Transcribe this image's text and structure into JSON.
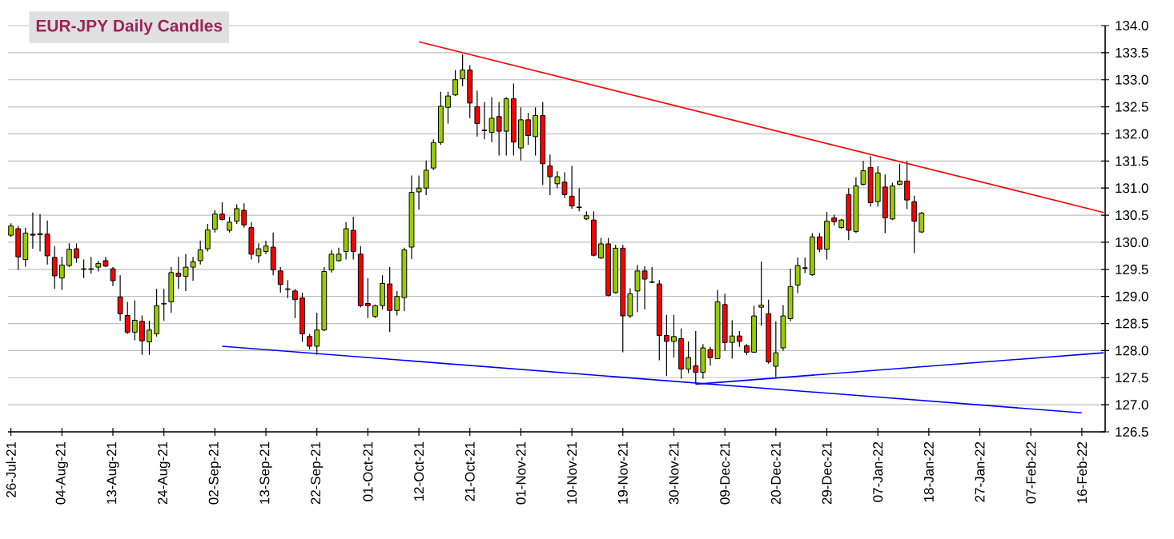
{
  "chart_data": {
    "type": "candlestick",
    "title": "EUR-JPY Daily Candles",
    "categories": [
      "26-Jul-21",
      null,
      null,
      null,
      null,
      null,
      null,
      "04-Aug-21",
      null,
      null,
      null,
      null,
      null,
      null,
      "13-Aug-21",
      null,
      null,
      null,
      null,
      null,
      null,
      "24-Aug-21",
      null,
      null,
      null,
      null,
      null,
      null,
      "02-Sep-21",
      null,
      null,
      null,
      null,
      null,
      null,
      "13-Sep-21",
      null,
      null,
      null,
      null,
      null,
      null,
      "22-Sep-21",
      null,
      null,
      null,
      null,
      null,
      null,
      "01-Oct-21",
      null,
      null,
      null,
      null,
      null,
      null,
      "12-Oct-21",
      null,
      null,
      null,
      null,
      null,
      null,
      "21-Oct-21",
      null,
      null,
      null,
      null,
      null,
      null,
      "01-Nov-21",
      null,
      null,
      null,
      null,
      null,
      null,
      "10-Nov-21",
      null,
      null,
      null,
      null,
      null,
      null,
      "19-Nov-21",
      null,
      null,
      null,
      null,
      null,
      null,
      "30-Nov-21",
      null,
      null,
      null,
      null,
      null,
      null,
      "09-Dec-21",
      null,
      null,
      null,
      null,
      null,
      null,
      "20-Dec-21",
      null,
      null,
      null,
      null,
      null,
      null,
      "29-Dec-21",
      null,
      null,
      null,
      null,
      null,
      null,
      "07-Jan-22",
      null,
      null,
      null,
      null,
      null,
      null,
      "18-Jan-22",
      null,
      null,
      null,
      null,
      null,
      null,
      "27-Jan-22",
      null,
      null,
      null,
      null,
      null,
      null,
      "07-Feb-22",
      null,
      null,
      null,
      null,
      null,
      null,
      "16-Feb-22",
      null,
      null,
      null
    ],
    "ohlc": [
      [
        130.13,
        130.35,
        130.1,
        130.3
      ],
      [
        130.25,
        130.3,
        129.49,
        129.73
      ],
      [
        129.68,
        130.27,
        129.55,
        130.17
      ],
      [
        130.15,
        130.55,
        129.88,
        130.13
      ],
      [
        130.14,
        130.52,
        129.83,
        130.16
      ],
      [
        130.15,
        130.4,
        129.59,
        129.75
      ],
      [
        129.72,
        129.93,
        129.14,
        129.38
      ],
      [
        129.34,
        129.73,
        129.12,
        129.58
      ],
      [
        129.57,
        129.98,
        129.54,
        129.87
      ],
      [
        129.88,
        129.98,
        129.62,
        129.71
      ],
      [
        129.51,
        129.68,
        129.34,
        129.5
      ],
      [
        129.5,
        129.73,
        129.42,
        129.51
      ],
      [
        129.54,
        129.66,
        129.46,
        129.61
      ],
      [
        129.66,
        129.73,
        129.54,
        129.56
      ],
      [
        129.51,
        129.54,
        129.19,
        129.29
      ],
      [
        128.99,
        129.39,
        128.55,
        128.68
      ],
      [
        128.65,
        128.9,
        128.31,
        128.34
      ],
      [
        128.34,
        128.93,
        128.19,
        128.56
      ],
      [
        128.54,
        128.65,
        127.92,
        128.18
      ],
      [
        128.16,
        128.55,
        127.92,
        128.38
      ],
      [
        128.31,
        129.14,
        128.26,
        128.83
      ],
      [
        128.86,
        129.14,
        128.55,
        128.87
      ],
      [
        128.9,
        129.54,
        128.7,
        129.44
      ],
      [
        129.43,
        129.73,
        129.14,
        129.37
      ],
      [
        129.37,
        129.78,
        129.1,
        129.54
      ],
      [
        129.54,
        129.73,
        129.29,
        129.64
      ],
      [
        129.66,
        130.03,
        129.59,
        129.86
      ],
      [
        129.88,
        130.34,
        129.83,
        130.23
      ],
      [
        130.24,
        130.59,
        130.18,
        130.52
      ],
      [
        130.52,
        130.74,
        130.4,
        130.42
      ],
      [
        130.22,
        130.47,
        130.18,
        130.37
      ],
      [
        130.39,
        130.7,
        130.34,
        130.62
      ],
      [
        130.59,
        130.72,
        130.27,
        130.32
      ],
      [
        130.27,
        130.37,
        129.68,
        129.78
      ],
      [
        129.75,
        129.98,
        129.62,
        129.88
      ],
      [
        129.83,
        130.03,
        129.78,
        129.93
      ],
      [
        129.91,
        130.18,
        129.39,
        129.49
      ],
      [
        129.47,
        129.54,
        129.07,
        129.22
      ],
      [
        129.14,
        129.3,
        128.97,
        129.13
      ],
      [
        129.1,
        129.14,
        128.6,
        128.94
      ],
      [
        128.97,
        129.07,
        128.16,
        128.31
      ],
      [
        128.26,
        128.31,
        128.02,
        128.08
      ],
      [
        128.08,
        128.7,
        127.92,
        128.38
      ],
      [
        128.38,
        129.54,
        128.36,
        129.46
      ],
      [
        129.49,
        129.86,
        129.44,
        129.78
      ],
      [
        129.66,
        129.9,
        129.64,
        129.78
      ],
      [
        129.83,
        130.37,
        129.68,
        130.25
      ],
      [
        130.22,
        130.47,
        129.68,
        129.83
      ],
      [
        129.78,
        129.93,
        128.8,
        128.83
      ],
      [
        128.87,
        129.34,
        128.6,
        128.83
      ],
      [
        128.63,
        128.85,
        128.6,
        128.83
      ],
      [
        128.83,
        129.39,
        128.76,
        129.24
      ],
      [
        129.23,
        129.54,
        128.34,
        128.74
      ],
      [
        128.74,
        129.1,
        128.65,
        129.0
      ],
      [
        128.98,
        129.9,
        128.73,
        129.86
      ],
      [
        129.91,
        131.23,
        129.69,
        130.92
      ],
      [
        130.93,
        131.23,
        130.6,
        131.0
      ],
      [
        131.0,
        131.51,
        130.87,
        131.33
      ],
      [
        131.37,
        131.9,
        131.33,
        131.84
      ],
      [
        131.84,
        132.78,
        131.8,
        132.51
      ],
      [
        132.49,
        132.78,
        132.19,
        132.7
      ],
      [
        132.72,
        133.18,
        132.7,
        133.0
      ],
      [
        133.02,
        133.47,
        132.88,
        133.18
      ],
      [
        133.18,
        133.27,
        132.29,
        132.57
      ],
      [
        132.5,
        132.8,
        131.95,
        132.19
      ],
      [
        132.07,
        132.59,
        131.9,
        132.06
      ],
      [
        132.03,
        132.68,
        131.85,
        132.29
      ],
      [
        132.32,
        132.59,
        131.6,
        132.05
      ],
      [
        132.05,
        132.68,
        131.6,
        132.65
      ],
      [
        132.65,
        132.93,
        131.6,
        131.85
      ],
      [
        131.74,
        132.49,
        131.51,
        132.26
      ],
      [
        132.26,
        132.39,
        131.8,
        131.97
      ],
      [
        131.95,
        132.49,
        131.6,
        132.34
      ],
      [
        132.34,
        132.59,
        131.06,
        131.45
      ],
      [
        131.41,
        131.62,
        130.87,
        131.21
      ],
      [
        131.08,
        131.31,
        131.0,
        131.21
      ],
      [
        131.11,
        131.29,
        130.82,
        130.88
      ],
      [
        130.85,
        131.41,
        130.62,
        130.67
      ],
      [
        130.65,
        131.0,
        130.57,
        130.64
      ],
      [
        130.43,
        130.57,
        130.41,
        130.49
      ],
      [
        130.41,
        130.57,
        129.74,
        129.76
      ],
      [
        129.71,
        130.08,
        129.69,
        129.97
      ],
      [
        129.97,
        130.08,
        129.0,
        129.02
      ],
      [
        129.07,
        129.95,
        129.05,
        129.89
      ],
      [
        129.89,
        129.95,
        127.97,
        128.64
      ],
      [
        128.64,
        129.15,
        128.6,
        129.05
      ],
      [
        129.1,
        129.58,
        128.71,
        129.47
      ],
      [
        129.47,
        129.56,
        128.76,
        129.32
      ],
      [
        129.27,
        129.54,
        129.25,
        129.26
      ],
      [
        129.23,
        129.3,
        127.82,
        128.28
      ],
      [
        128.28,
        128.66,
        127.53,
        128.17
      ],
      [
        128.17,
        128.66,
        127.87,
        128.26
      ],
      [
        128.22,
        128.41,
        127.48,
        127.66
      ],
      [
        127.66,
        128.17,
        127.58,
        127.87
      ],
      [
        127.72,
        128.36,
        127.38,
        127.6
      ],
      [
        127.6,
        128.12,
        127.48,
        128.05
      ],
      [
        128.02,
        128.07,
        127.72,
        127.87
      ],
      [
        127.85,
        129.12,
        127.85,
        128.9
      ],
      [
        128.85,
        129.05,
        127.99,
        128.15
      ],
      [
        128.15,
        128.56,
        127.85,
        128.27
      ],
      [
        128.27,
        128.36,
        128.07,
        128.17
      ],
      [
        128.09,
        128.12,
        127.92,
        127.97
      ],
      [
        127.97,
        128.83,
        127.97,
        128.64
      ],
      [
        128.8,
        129.64,
        128.46,
        128.84
      ],
      [
        128.68,
        128.94,
        127.76,
        127.79
      ],
      [
        127.71,
        128.54,
        127.51,
        127.96
      ],
      [
        128.05,
        128.84,
        128.0,
        128.64
      ],
      [
        128.59,
        129.51,
        128.54,
        129.18
      ],
      [
        129.21,
        129.72,
        129.06,
        129.57
      ],
      [
        129.52,
        129.72,
        129.43,
        129.53
      ],
      [
        129.4,
        130.17,
        129.38,
        130.1
      ],
      [
        130.1,
        130.17,
        129.82,
        129.87
      ],
      [
        129.87,
        130.56,
        129.68,
        130.39
      ],
      [
        130.45,
        130.51,
        130.31,
        130.38
      ],
      [
        130.27,
        130.43,
        130.25,
        130.41
      ],
      [
        130.88,
        131.0,
        130.04,
        130.22
      ],
      [
        130.2,
        131.2,
        130.17,
        131.04
      ],
      [
        131.07,
        131.5,
        131.05,
        131.32
      ],
      [
        131.38,
        131.59,
        130.66,
        130.73
      ],
      [
        130.75,
        131.4,
        130.66,
        131.28
      ],
      [
        131.02,
        131.25,
        130.17,
        130.45
      ],
      [
        130.43,
        131.1,
        130.41,
        131.04
      ],
      [
        131.07,
        131.45,
        131.05,
        131.13
      ],
      [
        131.13,
        131.5,
        130.61,
        130.78
      ],
      [
        130.75,
        130.86,
        129.8,
        130.39
      ],
      [
        130.19,
        130.56,
        130.17,
        130.54
      ],
      null,
      null,
      null,
      null,
      null,
      null,
      null,
      null,
      null,
      null,
      null,
      null,
      null,
      null,
      null,
      null,
      null,
      null,
      null,
      null,
      null,
      null,
      null,
      null,
      null
    ],
    "series": [
      {
        "type": "line",
        "color": "#ff0000",
        "values": [
          null,
          null,
          null,
          null,
          null,
          null,
          null,
          null,
          null,
          null,
          null,
          null,
          null,
          null,
          null,
          null,
          null,
          null,
          null,
          null,
          null,
          null,
          null,
          null,
          null,
          null,
          null,
          null,
          null,
          null,
          null,
          null,
          null,
          null,
          null,
          null,
          null,
          null,
          null,
          null,
          null,
          null,
          null,
          null,
          null,
          null,
          null,
          null,
          null,
          null,
          null,
          null,
          null,
          null,
          null,
          null,
          133.7,
          null,
          null,
          null,
          null,
          null,
          null,
          null,
          null,
          null,
          null,
          null,
          null,
          null,
          null,
          null,
          null,
          null,
          null,
          null,
          null,
          null,
          null,
          null,
          null,
          null,
          null,
          null,
          null,
          null,
          null,
          null,
          null,
          null,
          null,
          null,
          null,
          null,
          null,
          null,
          null,
          null,
          null,
          null,
          null,
          null,
          null,
          null,
          null,
          null,
          null,
          null,
          null,
          null,
          null,
          null,
          null,
          null,
          null,
          null,
          null,
          null,
          null,
          null,
          null,
          null,
          null,
          null,
          null,
          null,
          null,
          null,
          null,
          null,
          null,
          null,
          null,
          null,
          null,
          null,
          null,
          null,
          null,
          null,
          null,
          null,
          null,
          null,
          null,
          null,
          null,
          null,
          null,
          null,
          130.55
        ]
      },
      {
        "type": "line",
        "color": "#0000ff",
        "values": [
          null,
          null,
          null,
          null,
          null,
          null,
          null,
          null,
          null,
          null,
          null,
          null,
          null,
          null,
          null,
          null,
          null,
          null,
          null,
          null,
          null,
          null,
          null,
          null,
          null,
          null,
          null,
          null,
          null,
          128.08,
          null,
          null,
          null,
          null,
          null,
          null,
          null,
          null,
          null,
          null,
          null,
          null,
          null,
          null,
          null,
          null,
          null,
          null,
          null,
          null,
          null,
          null,
          null,
          null,
          null,
          null,
          null,
          null,
          null,
          null,
          null,
          null,
          null,
          null,
          null,
          null,
          null,
          null,
          null,
          null,
          null,
          null,
          null,
          null,
          null,
          null,
          null,
          null,
          null,
          null,
          null,
          null,
          null,
          null,
          null,
          null,
          null,
          null,
          null,
          null,
          null,
          null,
          null,
          null,
          null,
          null,
          null,
          null,
          null,
          null,
          null,
          null,
          null,
          null,
          null,
          null,
          null,
          null,
          null,
          null,
          null,
          null,
          null,
          null,
          null,
          null,
          null,
          null,
          null,
          null,
          null,
          null,
          null,
          null,
          null,
          null,
          null,
          null,
          null,
          null,
          null,
          null,
          null,
          null,
          null,
          null,
          null,
          null,
          null,
          null,
          null,
          null,
          null,
          null,
          null,
          null,
          null,
          126.85,
          null,
          null,
          null
        ]
      },
      {
        "type": "line",
        "color": "#0000ff",
        "values": [
          null,
          null,
          null,
          null,
          null,
          null,
          null,
          null,
          null,
          null,
          null,
          null,
          null,
          null,
          null,
          null,
          null,
          null,
          null,
          null,
          null,
          null,
          null,
          null,
          null,
          null,
          null,
          null,
          null,
          null,
          null,
          null,
          null,
          null,
          null,
          null,
          null,
          null,
          null,
          null,
          null,
          null,
          null,
          null,
          null,
          null,
          null,
          null,
          null,
          null,
          null,
          null,
          null,
          null,
          null,
          null,
          null,
          null,
          null,
          null,
          null,
          null,
          null,
          null,
          null,
          null,
          null,
          null,
          null,
          null,
          null,
          null,
          null,
          null,
          null,
          null,
          null,
          null,
          null,
          null,
          null,
          null,
          null,
          null,
          null,
          null,
          null,
          null,
          null,
          null,
          null,
          null,
          null,
          null,
          127.38,
          null,
          null,
          null,
          null,
          null,
          null,
          null,
          null,
          null,
          null,
          null,
          null,
          null,
          null,
          null,
          null,
          null,
          null,
          null,
          null,
          null,
          null,
          null,
          null,
          null,
          null,
          null,
          null,
          null,
          null,
          null,
          null,
          null,
          null,
          null,
          null,
          null,
          null,
          null,
          null,
          null,
          null,
          null,
          null,
          null,
          null,
          null,
          null,
          null,
          null,
          null,
          null,
          null,
          null,
          null,
          127.96
        ]
      }
    ],
    "ylim": [
      126.5,
      134.0
    ],
    "yticks": [
      {
        "value": 126.5,
        "label": "126.5"
      },
      {
        "value": 127.0,
        "label": "127.0"
      },
      {
        "value": 127.5,
        "label": "127.5"
      },
      {
        "value": 128.0,
        "label": "128.0"
      },
      {
        "value": 128.5,
        "label": "128.5"
      },
      {
        "value": 129.0,
        "label": "129.0"
      },
      {
        "value": 129.5,
        "label": "129.5"
      },
      {
        "value": 130.0,
        "label": "130.0"
      },
      {
        "value": 130.5,
        "label": "130.5"
      },
      {
        "value": 131.0,
        "label": "131.0"
      },
      {
        "value": 131.5,
        "label": "131.5"
      },
      {
        "value": 132.0,
        "label": "132.0"
      },
      {
        "value": 132.5,
        "label": "132.5"
      },
      {
        "value": 133.0,
        "label": "133.0"
      },
      {
        "value": 133.5,
        "label": "133.5"
      },
      {
        "value": 134.0,
        "label": "134.0"
      }
    ],
    "grid": "y"
  }
}
